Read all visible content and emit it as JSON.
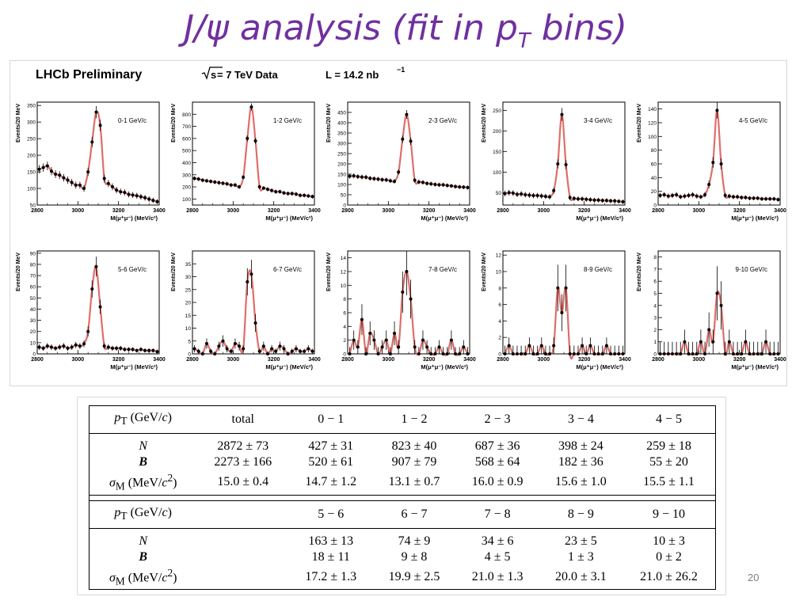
{
  "slide": {
    "title_prefix": "J/",
    "title_psi": "ψ",
    "title_middle": " analysis (fit in p",
    "title_sub": "T",
    "title_suffix": " bins)",
    "page_number": "20"
  },
  "panel": {
    "experiment": "LHCb Preliminary",
    "sqrt_label": "s",
    "energy": " = 7 TeV Data",
    "lumi": "L = 14.2 nb",
    "lumi_exp": "−1"
  },
  "chart_data": {
    "type": "scatter",
    "xlabel": "M(μ⁺μ⁻) (MeV/c²)",
    "ylabel": "Events/20 MeV",
    "xlim": [
      2800,
      3400
    ],
    "xticks": [
      2800,
      3000,
      3200,
      3400
    ],
    "x": [
      2810,
      2830,
      2850,
      2870,
      2890,
      2910,
      2930,
      2950,
      2970,
      2990,
      3010,
      3030,
      3050,
      3070,
      3090,
      3110,
      3130,
      3150,
      3170,
      3190,
      3210,
      3230,
      3250,
      3270,
      3290,
      3310,
      3330,
      3350,
      3370,
      3390
    ],
    "panels": [
      {
        "bin": "0-1 GeV/c",
        "ylim": [
          50,
          360
        ],
        "yticks": [
          50,
          100,
          150,
          200,
          250,
          300,
          350
        ],
        "values": [
          158,
          163,
          168,
          152,
          143,
          140,
          132,
          125,
          118,
          110,
          110,
          100,
          150,
          240,
          330,
          290,
          130,
          115,
          105,
          95,
          90,
          88,
          82,
          80,
          78,
          75,
          72,
          68,
          64,
          60
        ]
      },
      {
        "bin": "1-2 GeV/c",
        "ylim": [
          50,
          900
        ],
        "yticks": [
          100,
          200,
          300,
          400,
          500,
          600,
          700,
          800
        ],
        "values": [
          270,
          265,
          255,
          250,
          245,
          240,
          235,
          230,
          225,
          215,
          215,
          200,
          280,
          600,
          860,
          580,
          200,
          190,
          180,
          170,
          160,
          160,
          150,
          145,
          145,
          140,
          130,
          130,
          125,
          120
        ]
      },
      {
        "bin": "2-3 GeV/c",
        "ylim": [
          0,
          500
        ],
        "yticks": [
          0,
          50,
          100,
          150,
          200,
          250,
          300,
          350,
          400,
          450
        ],
        "values": [
          140,
          142,
          138,
          136,
          135,
          130,
          128,
          126,
          123,
          122,
          118,
          115,
          160,
          320,
          440,
          310,
          120,
          112,
          110,
          105,
          103,
          100,
          98,
          98,
          95,
          93,
          90,
          88,
          87,
          85
        ]
      },
      {
        "bin": "3-4 GeV/c",
        "ylim": [
          20,
          270
        ],
        "yticks": [
          50,
          100,
          150,
          200,
          250
        ],
        "values": [
          48,
          50,
          49,
          46,
          47,
          45,
          44,
          43,
          43,
          42,
          41,
          40,
          55,
          120,
          240,
          118,
          38,
          36,
          35,
          35,
          34,
          33,
          32,
          32,
          31,
          31,
          30,
          30,
          29,
          28
        ]
      },
      {
        "bin": "4-5 GeV/c",
        "ylim": [
          0,
          150
        ],
        "yticks": [
          0,
          20,
          40,
          60,
          80,
          100,
          120,
          140
        ],
        "values": [
          14,
          15,
          13,
          14,
          15,
          12,
          13,
          14,
          15,
          13,
          12,
          15,
          30,
          62,
          138,
          60,
          14,
          13,
          12,
          12,
          11,
          11,
          10,
          10,
          10,
          9,
          9,
          9,
          9,
          8
        ]
      },
      {
        "bin": "5-6 GeV/c",
        "ylim": [
          0,
          92
        ],
        "yticks": [
          0,
          10,
          20,
          30,
          40,
          50,
          60,
          70,
          80,
          90
        ],
        "values": [
          6,
          5,
          7,
          6,
          5,
          6,
          7,
          5,
          6,
          8,
          7,
          9,
          20,
          58,
          78,
          42,
          7,
          6,
          5,
          5,
          5,
          4,
          4,
          4,
          3,
          4,
          3,
          3,
          3,
          2
        ]
      },
      {
        "bin": "6-7 GeV/c",
        "ylim": [
          0,
          40
        ],
        "yticks": [
          0,
          5,
          10,
          15,
          20,
          25,
          30,
          35
        ],
        "values": [
          2,
          1,
          0,
          4,
          1,
          0,
          3,
          5,
          2,
          1,
          4,
          3,
          2,
          28,
          31,
          12,
          1,
          3,
          0,
          2,
          1,
          3,
          2,
          0,
          1,
          2,
          1,
          1,
          2,
          1
        ]
      },
      {
        "bin": "7-8 GeV/c",
        "ylim": [
          0,
          15
        ],
        "yticks": [
          0,
          2,
          4,
          6,
          8,
          10,
          12,
          14
        ],
        "values": [
          0,
          2,
          1,
          5,
          0,
          3,
          2,
          0,
          1,
          2,
          0,
          3,
          1,
          9,
          12,
          8,
          1,
          0,
          2,
          1,
          0,
          0,
          1,
          0,
          0,
          2,
          0,
          0,
          1,
          0
        ]
      },
      {
        "bin": "8-9 GeV/c",
        "ylim": [
          0,
          12.5
        ],
        "yticks": [
          0,
          2,
          4,
          6,
          8,
          10,
          12
        ],
        "values": [
          0,
          1,
          0,
          0,
          0,
          0,
          1,
          0,
          0,
          1,
          0,
          0,
          1,
          8,
          5,
          8,
          0,
          0,
          0,
          1,
          0,
          1,
          0,
          0,
          0,
          1,
          0,
          0,
          0,
          0
        ]
      },
      {
        "bin": "9-10 GeV/c",
        "ylim": [
          0,
          8.5
        ],
        "yticks": [
          0,
          1,
          2,
          3,
          4,
          5,
          6,
          7,
          8
        ],
        "values": [
          0,
          0,
          0,
          0,
          0,
          0,
          1,
          0,
          0,
          0,
          1,
          0,
          2,
          1,
          5,
          4,
          0,
          1,
          0,
          0,
          0,
          1,
          0,
          0,
          0,
          0,
          1,
          0,
          0,
          0
        ]
      }
    ]
  },
  "table": {
    "pt_label_it": "p",
    "pt_label_sub": "T",
    "pt_label_rest": " (GeV/",
    "pt_label_c": "c",
    "pt_label_end": ")",
    "row_labels": {
      "N": "N",
      "B": "B",
      "sigma": "σ",
      "sigma_sub": "M",
      "sigma_unit": " (MeV/",
      "sigma_c": "c",
      "sigma_exp": "2",
      "sigma_end": ")"
    },
    "block1": {
      "headers": [
        "total",
        "0 − 1",
        "1 − 2",
        "2 − 3",
        "3 − 4",
        "4 − 5"
      ],
      "N": [
        "2872 ± 73",
        "427 ± 31",
        "823 ± 40",
        "687 ± 36",
        "398 ± 24",
        "259 ± 18"
      ],
      "B": [
        "2273 ± 166",
        "520 ± 61",
        "907 ± 79",
        "568 ± 64",
        "182 ± 36",
        "55 ± 20"
      ],
      "sigma": [
        "15.0 ± 0.4",
        "14.7 ± 1.2",
        "13.1 ± 0.7",
        "16.0 ± 0.9",
        "15.6 ± 1.0",
        "15.5 ± 1.1"
      ]
    },
    "block2": {
      "headers": [
        "",
        "5 − 6",
        "6 − 7",
        "7 − 8",
        "8 − 9",
        "9 − 10"
      ],
      "N": [
        "",
        "163 ± 13",
        "74 ± 9",
        "34 ± 6",
        "23 ± 5",
        "10 ± 3"
      ],
      "B": [
        "",
        "18 ± 11",
        "9 ± 8",
        "4 ± 5",
        "1 ± 3",
        "0 ± 2"
      ],
      "sigma": [
        "",
        "17.2 ± 1.3",
        "19.9 ± 2.5",
        "21.0 ± 1.3",
        "20.0 ± 3.1",
        "21.0 ± 26.2"
      ]
    }
  }
}
